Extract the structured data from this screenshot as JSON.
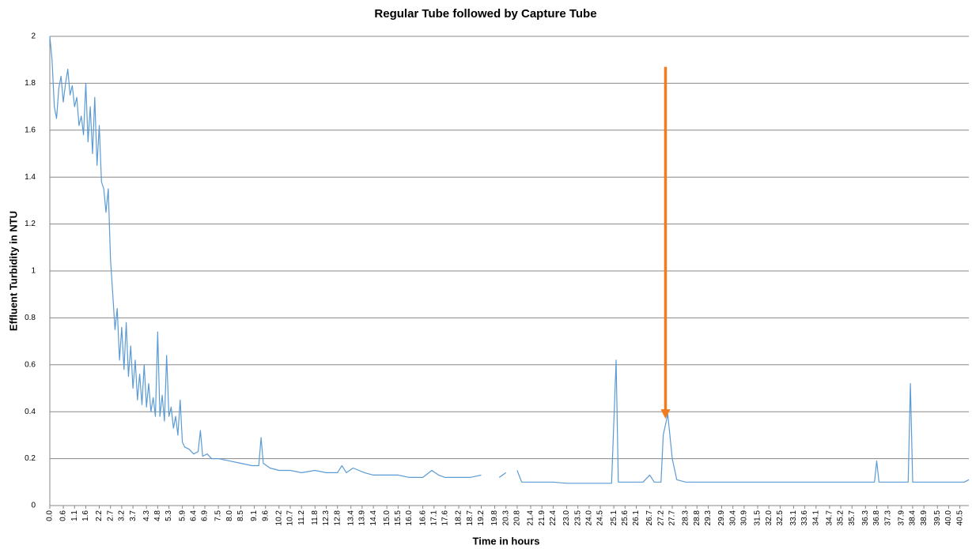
{
  "chart_data": {
    "type": "line",
    "title": "Regular Tube followed by Capture Tube",
    "x_label": "Time in hours",
    "y_label": "Effluent Turbidity in NTU",
    "color": "#5b9bd5",
    "grid": true,
    "xlim": [
      0,
      40.9
    ],
    "ylim": [
      0,
      2
    ],
    "yticks": [
      0,
      0.2,
      0.4,
      0.6,
      0.8,
      1,
      1.2,
      1.4,
      1.6,
      1.8,
      2
    ],
    "xticks": [
      {
        "value": 0,
        "label": "0.0"
      },
      0.6,
      1.1,
      1.6,
      2.2,
      2.7,
      3.2,
      3.7,
      4.3,
      4.8,
      5.3,
      5.9,
      6.4,
      6.9,
      7.5,
      {
        "value": 8,
        "label": "8.0"
      },
      8.5,
      9.1,
      9.6,
      10.2,
      10.7,
      11.2,
      11.8,
      12.3,
      12.8,
      13.4,
      13.9,
      14.4,
      {
        "value": 15,
        "label": "15.0"
      },
      15.5,
      {
        "value": 16,
        "label": "16.0"
      },
      16.6,
      17.1,
      17.6,
      18.2,
      18.7,
      19.2,
      19.8,
      20.3,
      20.8,
      21.4,
      21.9,
      22.4,
      {
        "value": 23,
        "label": "23.0"
      },
      23.5,
      {
        "value": 24,
        "label": "24.0"
      },
      24.5,
      25.1,
      25.6,
      26.1,
      26.7,
      27.2,
      27.7,
      28.3,
      28.8,
      29.3,
      29.9,
      30.4,
      30.9,
      31.5,
      {
        "value": 32,
        "label": "32.0"
      },
      32.5,
      33.1,
      33.6,
      34.1,
      34.7,
      35.2,
      35.7,
      36.3,
      36.8,
      37.3,
      37.9,
      38.4,
      38.9,
      39.5,
      {
        "value": 40,
        "label": "40.0"
      },
      40.5
    ],
    "x": [
      0,
      0.1,
      0.2,
      0.3,
      0.4,
      0.5,
      0.6,
      0.7,
      0.8,
      0.9,
      1.0,
      1.1,
      1.2,
      1.3,
      1.4,
      1.5,
      1.6,
      1.7,
      1.8,
      1.9,
      2.0,
      2.1,
      2.2,
      2.3,
      2.4,
      2.5,
      2.6,
      2.7,
      2.8,
      2.9,
      3.0,
      3.1,
      3.2,
      3.3,
      3.4,
      3.5,
      3.6,
      3.7,
      3.8,
      3.9,
      4.0,
      4.1,
      4.2,
      4.3,
      4.4,
      4.5,
      4.6,
      4.7,
      4.8,
      4.9,
      5.0,
      5.1,
      5.2,
      5.3,
      5.4,
      5.5,
      5.6,
      5.7,
      5.8,
      5.9,
      6.0,
      6.2,
      6.4,
      6.6,
      6.7,
      6.8,
      7.0,
      7.2,
      7.5,
      8.0,
      8.5,
      9.0,
      9.3,
      9.4,
      9.5,
      9.8,
      10.2,
      10.7,
      11.2,
      11.8,
      12.3,
      12.8,
      13.0,
      13.2,
      13.5,
      14.0,
      14.4,
      15.0,
      15.5,
      16.0,
      16.6,
      17.0,
      17.3,
      17.6,
      18.2,
      18.7,
      19.2,
      19.4,
      20.0,
      20.3,
      20.5,
      20.8,
      21.0,
      21.4,
      22.0,
      22.4,
      23.0,
      24.0,
      25.0,
      25.2,
      25.3,
      25.6,
      26.1,
      26.4,
      26.7,
      26.9,
      27.2,
      27.3,
      27.5,
      27.7,
      27.9,
      28.3,
      29.0,
      30.0,
      31.0,
      32.0,
      33.0,
      34.0,
      35.0,
      36.0,
      36.7,
      36.8,
      36.9,
      37.5,
      38.2,
      38.3,
      38.4,
      39.0,
      40.0,
      40.7,
      40.9
    ],
    "values": [
      2.0,
      1.9,
      1.7,
      1.65,
      1.78,
      1.83,
      1.72,
      1.8,
      1.86,
      1.75,
      1.79,
      1.7,
      1.74,
      1.62,
      1.66,
      1.58,
      1.8,
      1.55,
      1.7,
      1.5,
      1.74,
      1.45,
      1.62,
      1.38,
      1.35,
      1.25,
      1.35,
      1.05,
      0.9,
      0.75,
      0.84,
      0.62,
      0.76,
      0.58,
      0.78,
      0.55,
      0.68,
      0.5,
      0.62,
      0.45,
      0.56,
      0.43,
      0.6,
      0.42,
      0.52,
      0.4,
      0.46,
      0.38,
      0.74,
      0.38,
      0.47,
      0.36,
      0.64,
      0.38,
      0.42,
      0.33,
      0.38,
      0.3,
      0.45,
      0.27,
      0.25,
      0.24,
      0.22,
      0.23,
      0.32,
      0.21,
      0.22,
      0.2,
      0.2,
      0.19,
      0.18,
      0.17,
      0.17,
      0.29,
      0.18,
      0.16,
      0.15,
      0.15,
      0.14,
      0.15,
      0.14,
      0.14,
      0.17,
      0.14,
      0.16,
      0.14,
      0.13,
      0.13,
      0.13,
      0.12,
      0.12,
      0.15,
      0.13,
      0.12,
      0.12,
      0.12,
      0.13,
      null,
      0.12,
      0.14,
      null,
      0.15,
      0.1,
      0.1,
      0.1,
      0.1,
      0.095,
      0.095,
      0.095,
      0.62,
      0.1,
      0.1,
      0.1,
      0.1,
      0.13,
      0.1,
      0.1,
      0.3,
      0.39,
      0.2,
      0.11,
      0.1,
      0.1,
      0.1,
      0.1,
      0.1,
      0.1,
      0.1,
      0.1,
      0.1,
      0.1,
      0.19,
      0.1,
      0.1,
      0.1,
      0.52,
      0.1,
      0.1,
      0.1,
      0.1,
      0.11
    ],
    "annotations": [
      {
        "type": "arrow",
        "x": 27.4,
        "y_start": 1.87,
        "y_end": 0.37,
        "color": "#f07c1e"
      }
    ]
  }
}
